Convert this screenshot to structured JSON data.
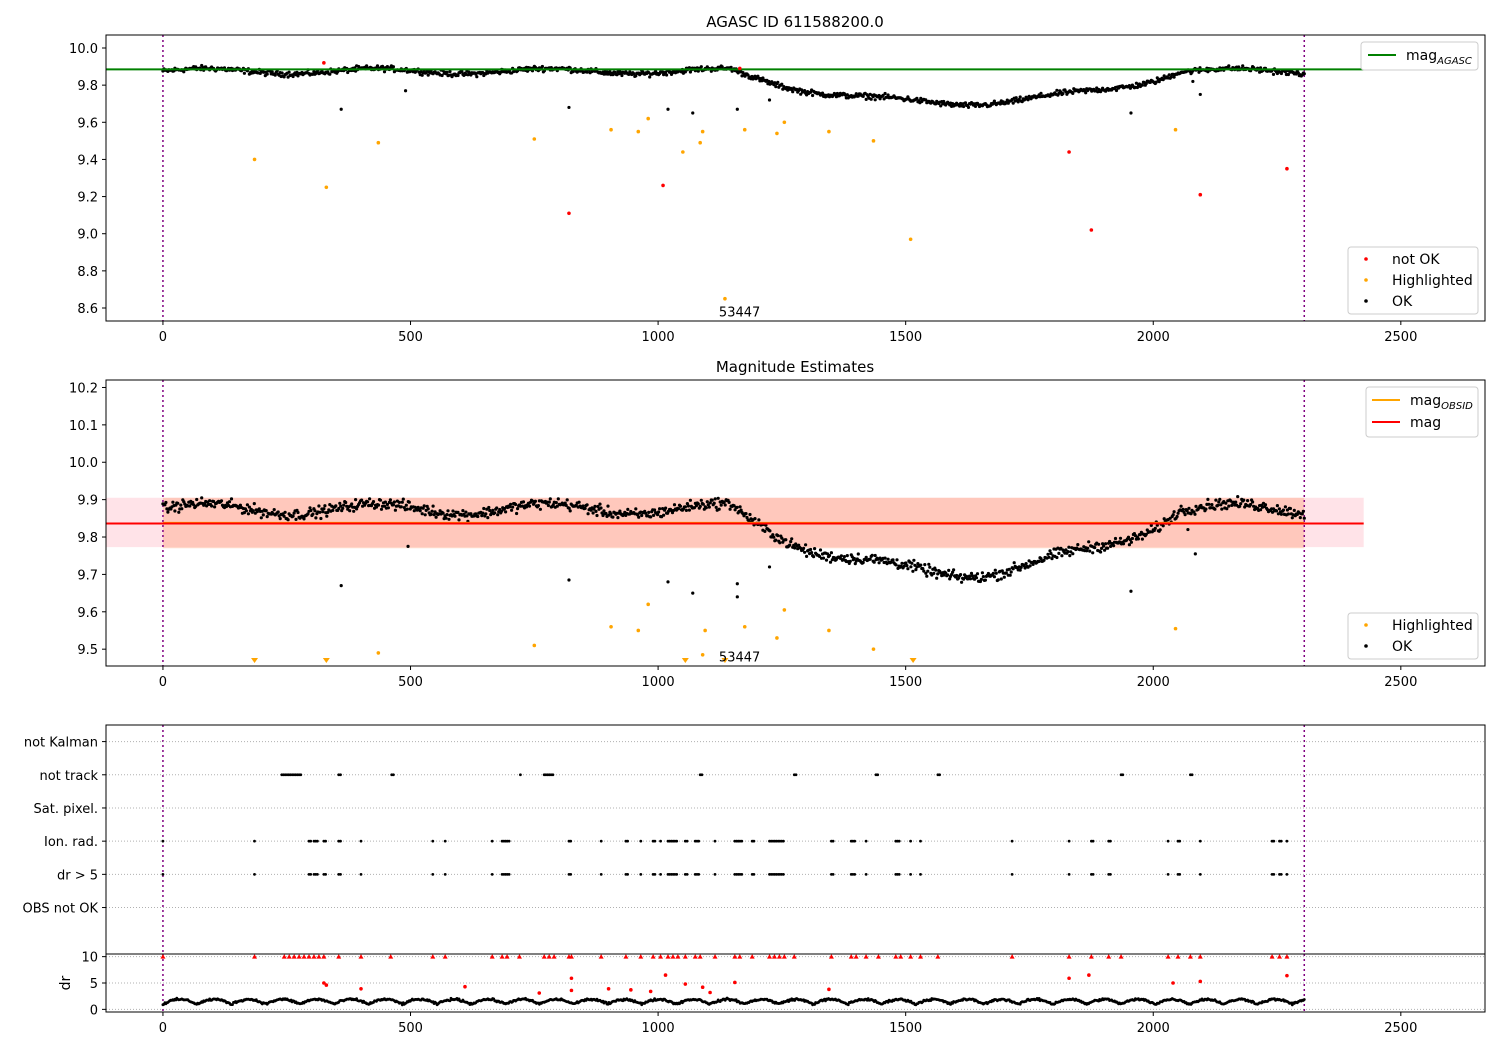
{
  "colors": {
    "ok": "#000000",
    "highlighted": "#ffa500",
    "not_ok": "#ff0000",
    "mag_agasc": "#008000",
    "mag_obsid": "#ffa500",
    "mag": "#ff0000",
    "vline": "#800080",
    "dr_flag": "#ff0000",
    "band_mag": "#ffc0cb",
    "band_obsid": "#ffa07a"
  },
  "chart_data": [
    {
      "type": "scatter",
      "title": "AGASC ID 611588200.0",
      "xlim": [
        -115,
        2670
      ],
      "ylim": [
        8.53,
        10.07
      ],
      "xticks": [
        0,
        500,
        1000,
        1500,
        2000,
        2500
      ],
      "yticks": [
        8.6,
        8.8,
        9.0,
        9.2,
        9.4,
        9.6,
        9.8,
        10.0
      ],
      "ytick_labels": [
        "8.6",
        "8.8",
        "9.0",
        "9.2",
        "9.4",
        "9.6",
        "9.8",
        "10.0"
      ],
      "xtick_labels": [
        "0",
        "500",
        "1000",
        "1500",
        "2000",
        "2500"
      ],
      "vlines": [
        0,
        2305
      ],
      "hline": {
        "name": "mag",
        "sub": "AGASC",
        "y": 9.885,
        "x_end": 2425
      },
      "annotation": {
        "text": "53447",
        "x": 1100,
        "y": 8.58
      },
      "legend_lines": [
        {
          "label_main": "mag",
          "label_sub": "AGASC",
          "color_key": "mag_agasc"
        }
      ],
      "legend_points": [
        {
          "label": "not OK",
          "color_key": "not_ok"
        },
        {
          "label": "Highlighted",
          "color_key": "highlighted"
        },
        {
          "label": "OK",
          "color_key": "ok"
        }
      ],
      "series": [
        {
          "name": "OK",
          "color_key": "ok",
          "model": "magcurve",
          "n": 1150,
          "x_max": 2305,
          "outliers": [
            [
              360,
              9.67
            ],
            [
              490,
              9.77
            ],
            [
              820,
              9.68
            ],
            [
              1020,
              9.67
            ],
            [
              1070,
              9.65
            ],
            [
              1160,
              9.67
            ],
            [
              1225,
              9.72
            ],
            [
              1955,
              9.65
            ],
            [
              2080,
              9.82
            ],
            [
              2095,
              9.75
            ]
          ]
        },
        {
          "name": "Highlighted",
          "color_key": "highlighted",
          "points": [
            [
              185,
              9.4
            ],
            [
              330,
              9.25
            ],
            [
              435,
              9.49
            ],
            [
              750,
              9.51
            ],
            [
              905,
              9.56
            ],
            [
              960,
              9.55
            ],
            [
              980,
              9.62
            ],
            [
              1050,
              9.44
            ],
            [
              1085,
              9.49
            ],
            [
              1090,
              9.55
            ],
            [
              1135,
              8.65
            ],
            [
              1175,
              9.56
            ],
            [
              1240,
              9.54
            ],
            [
              1255,
              9.6
            ],
            [
              1345,
              9.55
            ],
            [
              1435,
              9.5
            ],
            [
              1510,
              8.97
            ],
            [
              2045,
              9.56
            ]
          ]
        },
        {
          "name": "not OK",
          "color_key": "not_ok",
          "points": [
            [
              325,
              9.92
            ],
            [
              820,
              9.11
            ],
            [
              1010,
              9.26
            ],
            [
              1165,
              9.89
            ],
            [
              1830,
              9.44
            ],
            [
              1875,
              9.02
            ],
            [
              2095,
              9.21
            ],
            [
              2270,
              9.35
            ]
          ]
        }
      ]
    },
    {
      "type": "scatter",
      "title": "Magnitude Estimates",
      "xlim": [
        -115,
        2670
      ],
      "ylim": [
        9.455,
        10.22
      ],
      "xticks": [
        0,
        500,
        1000,
        1500,
        2000,
        2500
      ],
      "yticks": [
        9.5,
        9.6,
        9.7,
        9.8,
        9.9,
        10.0,
        10.1,
        10.2
      ],
      "ytick_labels": [
        "9.5",
        "9.6",
        "9.7",
        "9.8",
        "9.9",
        "10.0",
        "10.1",
        "10.2"
      ],
      "xtick_labels": [
        "0",
        "500",
        "1000",
        "1500",
        "2000",
        "2500"
      ],
      "vlines": [
        0,
        2305
      ],
      "bands": [
        {
          "color_key": "band_mag",
          "x0": -115,
          "x1": 2425,
          "y0": 9.773,
          "y1": 9.905,
          "opacity": 0.45
        },
        {
          "color_key": "band_obsid",
          "x0": 0,
          "x1": 2305,
          "y0": 9.77,
          "y1": 9.905,
          "opacity": 0.4
        }
      ],
      "hlines": [
        {
          "name": "mag_OBSID",
          "color_key": "mag_obsid",
          "y": 9.838,
          "x0": 0,
          "x1": 2305
        },
        {
          "name": "mag",
          "color_key": "mag",
          "y": 9.836,
          "x0": -115,
          "x1": 2425
        }
      ],
      "annotation": {
        "text": "53447",
        "x": 1100,
        "y": 9.48
      },
      "legend_lines": [
        {
          "label_main": "mag",
          "label_sub": "OBSID",
          "color_key": "mag_obsid"
        },
        {
          "label_main": "mag",
          "label_sub": "",
          "color_key": "mag"
        }
      ],
      "legend_points": [
        {
          "label": "Highlighted",
          "color_key": "highlighted"
        },
        {
          "label": "OK",
          "color_key": "ok"
        }
      ],
      "triangles": [
        185,
        330,
        1055,
        1135,
        1515
      ],
      "series": [
        {
          "name": "OK",
          "color_key": "ok",
          "model": "magcurve",
          "n": 1150,
          "x_max": 2305,
          "outliers": [
            [
              360,
              9.67
            ],
            [
              495,
              9.775
            ],
            [
              820,
              9.685
            ],
            [
              1020,
              9.68
            ],
            [
              1070,
              9.65
            ],
            [
              1160,
              9.675
            ],
            [
              1160,
              9.64
            ],
            [
              1225,
              9.72
            ],
            [
              1955,
              9.655
            ],
            [
              2070,
              9.82
            ],
            [
              2085,
              9.755
            ]
          ]
        },
        {
          "name": "Highlighted",
          "color_key": "highlighted",
          "points": [
            [
              435,
              9.49
            ],
            [
              750,
              9.51
            ],
            [
              905,
              9.56
            ],
            [
              960,
              9.55
            ],
            [
              980,
              9.62
            ],
            [
              1090,
              9.485
            ],
            [
              1095,
              9.55
            ],
            [
              1175,
              9.56
            ],
            [
              1240,
              9.53
            ],
            [
              1255,
              9.605
            ],
            [
              1345,
              9.55
            ],
            [
              1435,
              9.5
            ],
            [
              2045,
              9.555
            ]
          ]
        }
      ]
    },
    {
      "type": "scatter",
      "title": "",
      "xlim": [
        -115,
        2670
      ],
      "ylim": [
        6.4,
        -0.5
      ],
      "xticks": [
        0,
        500,
        1000,
        1500,
        2000,
        2500
      ],
      "vlines": [
        0,
        2305
      ],
      "categories": [
        "not Kalman",
        "not track",
        "Sat. pixel.",
        "Ion. rad.",
        "dr > 5",
        "OBS not OK"
      ],
      "flags": {
        "not track": [
          [
            240,
            280
          ],
          [
            355,
            360
          ],
          [
            462,
            467
          ],
          [
            722,
            724
          ],
          [
            770,
            790
          ],
          [
            1085,
            1090
          ],
          [
            1275,
            1280
          ],
          [
            1440,
            1445
          ],
          [
            1565,
            1570
          ],
          [
            1935,
            1940
          ],
          [
            2075,
            2080
          ]
        ],
        "Ion. rad.": [
          [
            0,
            0
          ],
          [
            185,
            185
          ],
          [
            295,
            300
          ],
          [
            305,
            315
          ],
          [
            325,
            330
          ],
          [
            355,
            360
          ],
          [
            400,
            400
          ],
          [
            545,
            545
          ],
          [
            570,
            570
          ],
          [
            665,
            665
          ],
          [
            685,
            700
          ],
          [
            820,
            825
          ],
          [
            885,
            885
          ],
          [
            935,
            940
          ],
          [
            965,
            965
          ],
          [
            990,
            995
          ],
          [
            1005,
            1005
          ],
          [
            1020,
            1040
          ],
          [
            1055,
            1060
          ],
          [
            1075,
            1085
          ],
          [
            1115,
            1115
          ],
          [
            1155,
            1170
          ],
          [
            1190,
            1195
          ],
          [
            1225,
            1255
          ],
          [
            1350,
            1355
          ],
          [
            1390,
            1400
          ],
          [
            1420,
            1420
          ],
          [
            1480,
            1490
          ],
          [
            1510,
            1510
          ],
          [
            1530,
            1530
          ],
          [
            1715,
            1715
          ],
          [
            1830,
            1830
          ],
          [
            1875,
            1880
          ],
          [
            1910,
            1915
          ],
          [
            2030,
            2030
          ],
          [
            2050,
            2055
          ],
          [
            2095,
            2095
          ],
          [
            2240,
            2245
          ],
          [
            2255,
            2260
          ],
          [
            2270,
            2270
          ]
        ],
        "dr > 5": [
          [
            0,
            0
          ],
          [
            185,
            185
          ],
          [
            295,
            300
          ],
          [
            305,
            315
          ],
          [
            325,
            330
          ],
          [
            355,
            360
          ],
          [
            400,
            400
          ],
          [
            545,
            545
          ],
          [
            570,
            570
          ],
          [
            665,
            665
          ],
          [
            685,
            700
          ],
          [
            820,
            825
          ],
          [
            885,
            885
          ],
          [
            935,
            940
          ],
          [
            965,
            965
          ],
          [
            990,
            995
          ],
          [
            1005,
            1005
          ],
          [
            1020,
            1040
          ],
          [
            1055,
            1060
          ],
          [
            1075,
            1085
          ],
          [
            1115,
            1115
          ],
          [
            1155,
            1170
          ],
          [
            1190,
            1195
          ],
          [
            1225,
            1255
          ],
          [
            1350,
            1355
          ],
          [
            1390,
            1400
          ],
          [
            1420,
            1420
          ],
          [
            1480,
            1490
          ],
          [
            1510,
            1510
          ],
          [
            1530,
            1530
          ],
          [
            1715,
            1715
          ],
          [
            1830,
            1830
          ],
          [
            1875,
            1880
          ],
          [
            1910,
            1915
          ],
          [
            2030,
            2030
          ],
          [
            2050,
            2055
          ],
          [
            2095,
            2095
          ],
          [
            2240,
            2245
          ],
          [
            2255,
            2260
          ],
          [
            2270,
            2270
          ]
        ]
      }
    },
    {
      "type": "scatter",
      "title": "",
      "ylabel": "dr",
      "xlim": [
        -115,
        2670
      ],
      "ylim": [
        -0.5,
        10.5
      ],
      "xticks": [
        0,
        500,
        1000,
        1500,
        2000,
        2500
      ],
      "xtick_labels": [
        "0",
        "500",
        "1000",
        "1500",
        "2000",
        "2500"
      ],
      "yticks": [
        0,
        5,
        10
      ],
      "ytick_labels": [
        "0",
        "5",
        "10"
      ],
      "gridlines": [
        0,
        5,
        10
      ],
      "vlines": [
        0,
        2305
      ],
      "capped_at": 10,
      "capped_x": [
        0,
        185,
        245,
        255,
        265,
        275,
        285,
        295,
        305,
        315,
        325,
        355,
        400,
        460,
        545,
        570,
        665,
        685,
        695,
        720,
        770,
        780,
        790,
        820,
        825,
        885,
        935,
        965,
        990,
        1005,
        1020,
        1030,
        1040,
        1055,
        1075,
        1085,
        1115,
        1155,
        1165,
        1190,
        1225,
        1235,
        1245,
        1255,
        1275,
        1350,
        1390,
        1400,
        1420,
        1445,
        1480,
        1490,
        1510,
        1530,
        1565,
        1715,
        1830,
        1875,
        1910,
        1935,
        2030,
        2050,
        2075,
        2095,
        2240,
        2255,
        2270
      ],
      "series": [
        {
          "name": "dr",
          "color_key": "ok",
          "model": "dr",
          "n": 1150,
          "x_max": 2305
        },
        {
          "name": "dr flagged",
          "color_key": "dr_flag",
          "points": [
            [
              325,
              5.0
            ],
            [
              330,
              4.6
            ],
            [
              400,
              3.9
            ],
            [
              610,
              4.3
            ],
            [
              760,
              3.1
            ],
            [
              825,
              3.6
            ],
            [
              825,
              5.9
            ],
            [
              900,
              3.9
            ],
            [
              945,
              3.7
            ],
            [
              985,
              3.4
            ],
            [
              1015,
              6.5
            ],
            [
              1055,
              4.8
            ],
            [
              1090,
              4.2
            ],
            [
              1105,
              3.2
            ],
            [
              1155,
              5.1
            ],
            [
              1345,
              3.8
            ],
            [
              1830,
              5.9
            ],
            [
              1870,
              6.5
            ],
            [
              2040,
              5.0
            ],
            [
              2095,
              5.3
            ],
            [
              2270,
              6.4
            ]
          ]
        }
      ]
    }
  ]
}
